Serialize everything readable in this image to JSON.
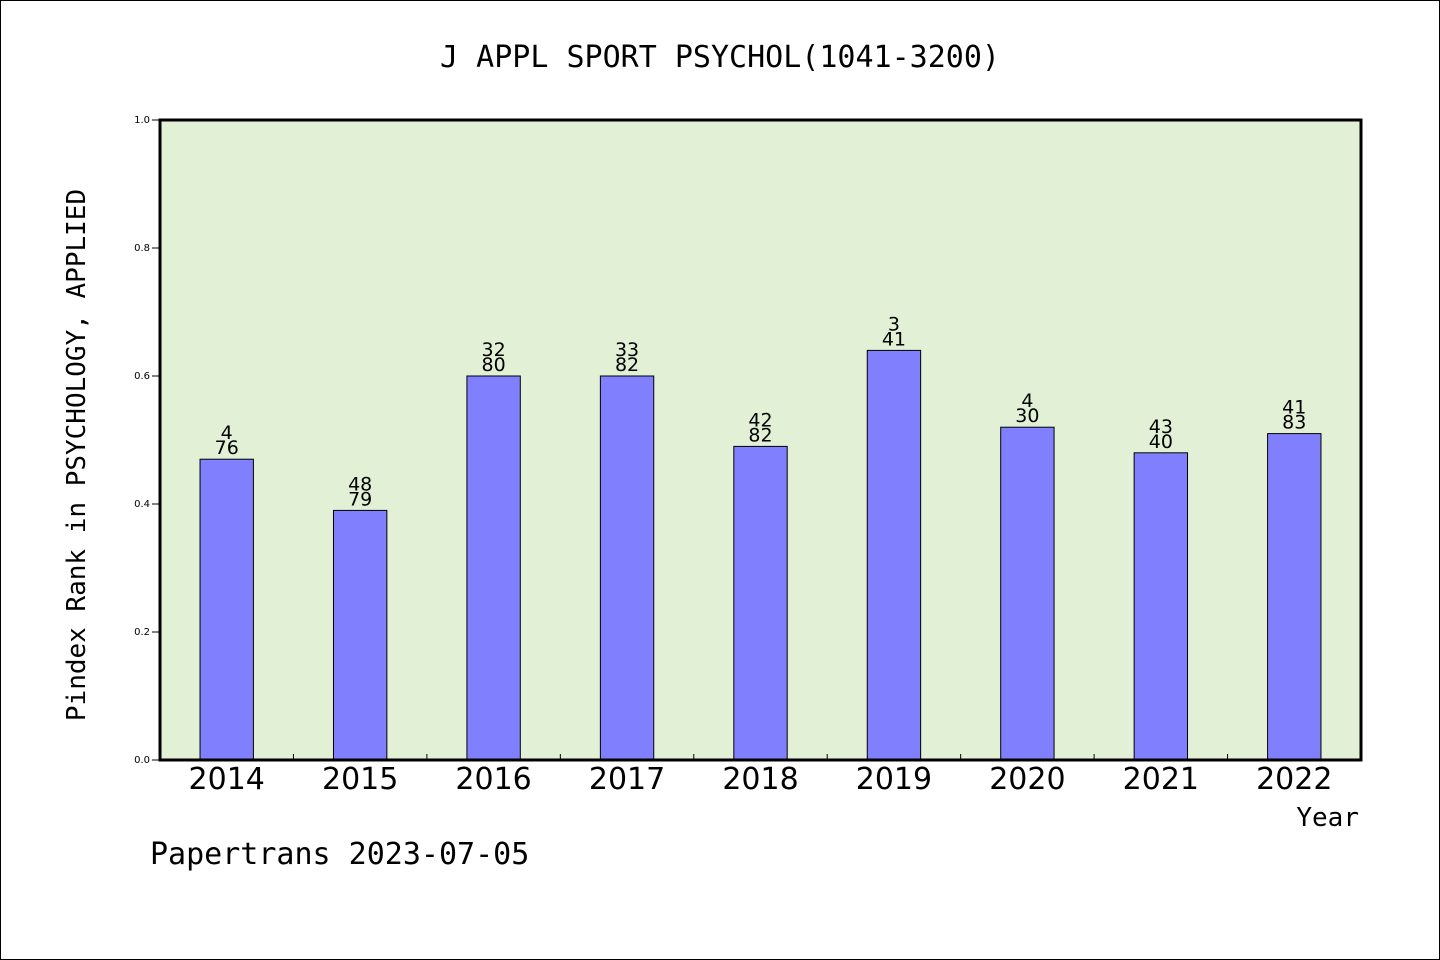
{
  "chart_data": {
    "type": "bar",
    "title": "J APPL SPORT PSYCHOL(1041-3200)",
    "xlabel": "Year",
    "ylabel": "Pindex Rank in PSYCHOLOGY, APPLIED",
    "ylim": [
      0,
      1.0
    ],
    "yticks": [
      "0.0",
      "0.2",
      "0.4",
      "0.6",
      "0.8",
      "1.0"
    ],
    "categories": [
      "2014",
      "2015",
      "2016",
      "2017",
      "2018",
      "2019",
      "2020",
      "2021",
      "2022"
    ],
    "values": [
      0.47,
      0.39,
      0.6,
      0.6,
      0.49,
      0.64,
      0.52,
      0.48,
      0.51
    ],
    "rank_labels": [
      {
        "rank": "4",
        "total": "76"
      },
      {
        "rank": "48",
        "total": "79"
      },
      {
        "rank": "32",
        "total": "80"
      },
      {
        "rank": "33",
        "total": "82"
      },
      {
        "rank": "42",
        "total": "82"
      },
      {
        "rank": "3",
        "total": "41"
      },
      {
        "rank": "4",
        "total": "30"
      },
      {
        "rank": "43",
        "total": "40"
      },
      {
        "rank": "41",
        "total": "83"
      }
    ],
    "grid": false,
    "colors": {
      "plot_background": "#e2f0d6",
      "bar_fill": "#8080ff",
      "bar_stroke": "#000000"
    }
  },
  "footer": {
    "watermark": "Papertrans 2023-07-05"
  }
}
